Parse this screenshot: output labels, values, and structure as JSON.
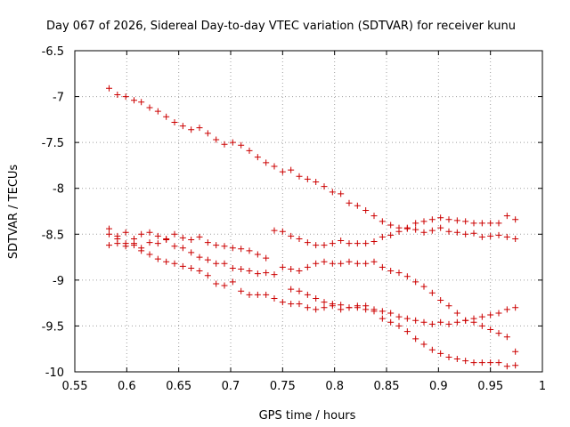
{
  "chart_data": {
    "type": "scatter",
    "title": "Day 067 of 2026, Sidereal Day-to-day VTEC variation (SDTVAR) for receiver kunu",
    "xlabel": "GPS time / hours",
    "ylabel": "SDTVAR / TECUs",
    "xlim": [
      0.55,
      1.0
    ],
    "ylim": [
      -10,
      -6.5
    ],
    "xticks": [
      0.55,
      0.6,
      0.65,
      0.7,
      0.75,
      0.8,
      0.85,
      0.9,
      0.95,
      1.0
    ],
    "xtick_labels": [
      "0.55",
      "0.6",
      "0.65",
      "0.7",
      "0.75",
      "0.8",
      "0.85",
      "0.9",
      "0.95",
      "1"
    ],
    "yticks": [
      -6.5,
      -7,
      -7.5,
      -8,
      -8.5,
      -9,
      -9.5,
      -10
    ],
    "ytick_labels": [
      "-6.5",
      "-7",
      "-7.5",
      "-8",
      "-8.5",
      "-9",
      "-9.5",
      "-10"
    ],
    "grid": true,
    "marker": "+",
    "color": "#cc0000",
    "series": [
      {
        "name": "track-1",
        "points": [
          [
            0.583,
            -6.91
          ],
          [
            0.591,
            -6.98
          ],
          [
            0.599,
            -7.0
          ],
          [
            0.607,
            -7.04
          ],
          [
            0.614,
            -7.06
          ],
          [
            0.622,
            -7.12
          ],
          [
            0.63,
            -7.16
          ],
          [
            0.638,
            -7.22
          ],
          [
            0.646,
            -7.28
          ],
          [
            0.654,
            -7.32
          ],
          [
            0.662,
            -7.36
          ],
          [
            0.67,
            -7.34
          ],
          [
            0.678,
            -7.4
          ],
          [
            0.686,
            -7.47
          ],
          [
            0.694,
            -7.52
          ],
          [
            0.702,
            -7.5
          ],
          [
            0.71,
            -7.53
          ],
          [
            0.718,
            -7.59
          ],
          [
            0.726,
            -7.66
          ],
          [
            0.734,
            -7.72
          ],
          [
            0.742,
            -7.76
          ],
          [
            0.75,
            -7.82
          ],
          [
            0.758,
            -7.8
          ],
          [
            0.766,
            -7.87
          ],
          [
            0.774,
            -7.9
          ],
          [
            0.782,
            -7.93
          ],
          [
            0.79,
            -7.98
          ],
          [
            0.798,
            -8.04
          ],
          [
            0.806,
            -8.06
          ],
          [
            0.814,
            -8.16
          ],
          [
            0.822,
            -8.19
          ],
          [
            0.83,
            -8.24
          ],
          [
            0.838,
            -8.3
          ],
          [
            0.846,
            -8.36
          ],
          [
            0.854,
            -8.4
          ],
          [
            0.862,
            -8.43
          ],
          [
            0.87,
            -8.44
          ],
          [
            0.878,
            -8.38
          ],
          [
            0.886,
            -8.36
          ],
          [
            0.894,
            -8.34
          ],
          [
            0.902,
            -8.32
          ],
          [
            0.91,
            -8.34
          ],
          [
            0.918,
            -8.35
          ],
          [
            0.926,
            -8.36
          ],
          [
            0.934,
            -8.38
          ],
          [
            0.942,
            -8.38
          ],
          [
            0.95,
            -8.38
          ],
          [
            0.958,
            -8.38
          ],
          [
            0.966,
            -8.3
          ],
          [
            0.974,
            -8.34
          ]
        ]
      },
      {
        "name": "track-2",
        "points": [
          [
            0.583,
            -8.44
          ],
          [
            0.591,
            -8.52
          ],
          [
            0.599,
            -8.48
          ],
          [
            0.607,
            -8.55
          ],
          [
            0.614,
            -8.5
          ],
          [
            0.622,
            -8.48
          ],
          [
            0.63,
            -8.52
          ],
          [
            0.638,
            -8.56
          ],
          [
            0.646,
            -8.5
          ],
          [
            0.654,
            -8.54
          ],
          [
            0.662,
            -8.56
          ],
          [
            0.67,
            -8.53
          ],
          [
            0.678,
            -8.59
          ],
          [
            0.686,
            -8.62
          ],
          [
            0.694,
            -8.63
          ],
          [
            0.702,
            -8.65
          ],
          [
            0.71,
            -8.66
          ],
          [
            0.718,
            -8.68
          ],
          [
            0.726,
            -8.72
          ],
          [
            0.734,
            -8.76
          ],
          [
            0.742,
            -8.46
          ],
          [
            0.75,
            -8.47
          ],
          [
            0.758,
            -8.52
          ],
          [
            0.766,
            -8.55
          ],
          [
            0.774,
            -8.59
          ],
          [
            0.782,
            -8.62
          ],
          [
            0.79,
            -8.62
          ],
          [
            0.798,
            -8.6
          ],
          [
            0.806,
            -8.57
          ],
          [
            0.814,
            -8.6
          ],
          [
            0.822,
            -8.6
          ],
          [
            0.83,
            -8.6
          ],
          [
            0.838,
            -8.58
          ],
          [
            0.846,
            -8.53
          ],
          [
            0.854,
            -8.51
          ],
          [
            0.862,
            -8.47
          ],
          [
            0.87,
            -8.43
          ],
          [
            0.878,
            -8.45
          ],
          [
            0.886,
            -8.48
          ],
          [
            0.894,
            -8.46
          ],
          [
            0.902,
            -8.43
          ],
          [
            0.91,
            -8.47
          ],
          [
            0.918,
            -8.48
          ],
          [
            0.926,
            -8.5
          ],
          [
            0.934,
            -8.49
          ],
          [
            0.942,
            -8.53
          ],
          [
            0.95,
            -8.52
          ],
          [
            0.958,
            -8.51
          ],
          [
            0.966,
            -8.53
          ],
          [
            0.974,
            -8.55
          ]
        ]
      },
      {
        "name": "track-3",
        "points": [
          [
            0.583,
            -8.5
          ],
          [
            0.591,
            -8.55
          ],
          [
            0.599,
            -8.6
          ],
          [
            0.607,
            -8.6
          ],
          [
            0.614,
            -8.65
          ],
          [
            0.622,
            -8.59
          ],
          [
            0.63,
            -8.6
          ],
          [
            0.638,
            -8.55
          ],
          [
            0.646,
            -8.63
          ],
          [
            0.654,
            -8.65
          ],
          [
            0.662,
            -8.7
          ],
          [
            0.67,
            -8.75
          ],
          [
            0.678,
            -8.78
          ],
          [
            0.686,
            -8.82
          ],
          [
            0.694,
            -8.82
          ],
          [
            0.702,
            -8.87
          ],
          [
            0.71,
            -8.88
          ],
          [
            0.718,
            -8.9
          ],
          [
            0.726,
            -8.93
          ],
          [
            0.734,
            -8.92
          ],
          [
            0.742,
            -8.94
          ],
          [
            0.75,
            -8.86
          ],
          [
            0.758,
            -8.88
          ],
          [
            0.766,
            -8.9
          ],
          [
            0.774,
            -8.86
          ],
          [
            0.782,
            -8.82
          ],
          [
            0.79,
            -8.8
          ],
          [
            0.798,
            -8.82
          ],
          [
            0.806,
            -8.82
          ],
          [
            0.814,
            -8.8
          ],
          [
            0.822,
            -8.82
          ],
          [
            0.83,
            -8.82
          ],
          [
            0.838,
            -8.8
          ],
          [
            0.846,
            -8.86
          ],
          [
            0.854,
            -8.9
          ],
          [
            0.862,
            -8.92
          ],
          [
            0.87,
            -8.96
          ],
          [
            0.878,
            -9.02
          ],
          [
            0.886,
            -9.07
          ],
          [
            0.894,
            -9.14
          ],
          [
            0.902,
            -9.22
          ],
          [
            0.91,
            -9.28
          ],
          [
            0.918,
            -9.36
          ],
          [
            0.926,
            -9.44
          ],
          [
            0.934,
            -9.42
          ],
          [
            0.942,
            -9.4
          ],
          [
            0.95,
            -9.38
          ],
          [
            0.958,
            -9.36
          ],
          [
            0.966,
            -9.32
          ],
          [
            0.974,
            -9.3
          ]
        ]
      },
      {
        "name": "track-4",
        "points": [
          [
            0.583,
            -8.62
          ],
          [
            0.591,
            -8.6
          ],
          [
            0.599,
            -8.63
          ],
          [
            0.607,
            -8.62
          ],
          [
            0.614,
            -8.68
          ],
          [
            0.622,
            -8.72
          ],
          [
            0.63,
            -8.77
          ],
          [
            0.638,
            -8.8
          ],
          [
            0.646,
            -8.82
          ],
          [
            0.654,
            -8.85
          ],
          [
            0.662,
            -8.87
          ],
          [
            0.67,
            -8.9
          ],
          [
            0.678,
            -8.95
          ],
          [
            0.686,
            -9.04
          ],
          [
            0.694,
            -9.06
          ],
          [
            0.702,
            -9.02
          ],
          [
            0.71,
            -9.12
          ],
          [
            0.718,
            -9.16
          ],
          [
            0.726,
            -9.16
          ],
          [
            0.734,
            -9.16
          ],
          [
            0.742,
            -9.2
          ],
          [
            0.75,
            -9.24
          ],
          [
            0.758,
            -9.26
          ],
          [
            0.766,
            -9.26
          ],
          [
            0.774,
            -9.3
          ],
          [
            0.782,
            -9.32
          ],
          [
            0.79,
            -9.3
          ],
          [
            0.798,
            -9.28
          ],
          [
            0.806,
            -9.32
          ],
          [
            0.814,
            -9.3
          ],
          [
            0.822,
            -9.3
          ],
          [
            0.83,
            -9.32
          ],
          [
            0.838,
            -9.34
          ],
          [
            0.846,
            -9.42
          ],
          [
            0.854,
            -9.46
          ],
          [
            0.862,
            -9.5
          ],
          [
            0.87,
            -9.56
          ],
          [
            0.878,
            -9.64
          ],
          [
            0.886,
            -9.7
          ],
          [
            0.894,
            -9.76
          ],
          [
            0.902,
            -9.8
          ],
          [
            0.91,
            -9.84
          ],
          [
            0.918,
            -9.86
          ],
          [
            0.926,
            -9.88
          ],
          [
            0.934,
            -9.9
          ],
          [
            0.942,
            -9.9
          ],
          [
            0.95,
            -9.9
          ],
          [
            0.958,
            -9.9
          ],
          [
            0.966,
            -9.94
          ],
          [
            0.974,
            -9.93
          ]
        ]
      },
      {
        "name": "track-5",
        "points": [
          [
            0.758,
            -9.1
          ],
          [
            0.766,
            -9.12
          ],
          [
            0.774,
            -9.16
          ],
          [
            0.782,
            -9.2
          ],
          [
            0.79,
            -9.24
          ],
          [
            0.798,
            -9.26
          ],
          [
            0.806,
            -9.27
          ],
          [
            0.814,
            -9.3
          ],
          [
            0.822,
            -9.28
          ],
          [
            0.83,
            -9.28
          ],
          [
            0.838,
            -9.32
          ],
          [
            0.846,
            -9.34
          ],
          [
            0.854,
            -9.36
          ],
          [
            0.862,
            -9.4
          ],
          [
            0.87,
            -9.42
          ],
          [
            0.878,
            -9.44
          ],
          [
            0.886,
            -9.46
          ],
          [
            0.894,
            -9.48
          ],
          [
            0.902,
            -9.46
          ],
          [
            0.91,
            -9.48
          ],
          [
            0.918,
            -9.46
          ],
          [
            0.926,
            -9.44
          ],
          [
            0.934,
            -9.46
          ],
          [
            0.942,
            -9.5
          ],
          [
            0.95,
            -9.54
          ],
          [
            0.958,
            -9.58
          ],
          [
            0.966,
            -9.62
          ],
          [
            0.974,
            -9.78
          ]
        ]
      }
    ]
  }
}
